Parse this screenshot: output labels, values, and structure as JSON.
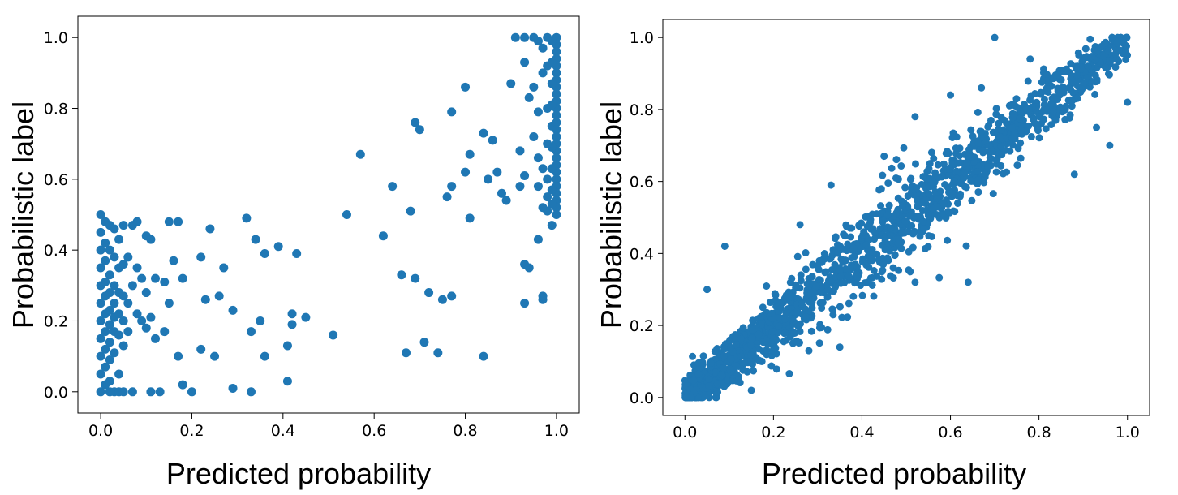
{
  "chart_data": [
    {
      "type": "scatter",
      "id": "left",
      "xlabel": "Predicted probability",
      "ylabel": "Probabilistic label",
      "xlim": [
        -0.05,
        1.05
      ],
      "ylim": [
        -0.06,
        1.06
      ],
      "xticks": [
        0.0,
        0.2,
        0.4,
        0.6,
        0.8,
        1.0
      ],
      "xtick_labels": [
        "0.0",
        "0.2",
        "0.4",
        "0.6",
        "0.8",
        "1.0"
      ],
      "yticks": [
        0.0,
        0.2,
        0.4,
        0.6,
        0.8,
        1.0
      ],
      "ytick_labels": [
        "0.0",
        "0.2",
        "0.4",
        "0.6",
        "0.8",
        "1.0"
      ],
      "marker_color": "#1f77b4",
      "points": [
        [
          0.0,
          0.5
        ],
        [
          0.0,
          0.45
        ],
        [
          0.0,
          0.4
        ],
        [
          0.0,
          0.35
        ],
        [
          0.0,
          0.3
        ],
        [
          0.0,
          0.25
        ],
        [
          0.0,
          0.2
        ],
        [
          0.0,
          0.15
        ],
        [
          0.0,
          0.1
        ],
        [
          0.0,
          0.05
        ],
        [
          0.0,
          0.0
        ],
        [
          0.01,
          0.48
        ],
        [
          0.01,
          0.42
        ],
        [
          0.01,
          0.37
        ],
        [
          0.01,
          0.31
        ],
        [
          0.01,
          0.27
        ],
        [
          0.01,
          0.22
        ],
        [
          0.01,
          0.17
        ],
        [
          0.01,
          0.12
        ],
        [
          0.01,
          0.07
        ],
        [
          0.01,
          0.02
        ],
        [
          0.02,
          0.47
        ],
        [
          0.02,
          0.4
        ],
        [
          0.02,
          0.33
        ],
        [
          0.02,
          0.28
        ],
        [
          0.02,
          0.23
        ],
        [
          0.02,
          0.19
        ],
        [
          0.02,
          0.14
        ],
        [
          0.02,
          0.09
        ],
        [
          0.02,
          0.03
        ],
        [
          0.02,
          0.0
        ],
        [
          0.03,
          0.46
        ],
        [
          0.03,
          0.38
        ],
        [
          0.03,
          0.3
        ],
        [
          0.03,
          0.25
        ],
        [
          0.03,
          0.21
        ],
        [
          0.03,
          0.17
        ],
        [
          0.03,
          0.11
        ],
        [
          0.03,
          0.0
        ],
        [
          0.04,
          0.43
        ],
        [
          0.04,
          0.35
        ],
        [
          0.04,
          0.28
        ],
        [
          0.04,
          0.22
        ],
        [
          0.04,
          0.16
        ],
        [
          0.04,
          0.05
        ],
        [
          0.04,
          0.0
        ],
        [
          0.05,
          0.47
        ],
        [
          0.05,
          0.36
        ],
        [
          0.05,
          0.27
        ],
        [
          0.05,
          0.2
        ],
        [
          0.05,
          0.13
        ],
        [
          0.05,
          0.0
        ],
        [
          0.06,
          0.38
        ],
        [
          0.06,
          0.25
        ],
        [
          0.06,
          0.17
        ],
        [
          0.07,
          0.47
        ],
        [
          0.07,
          0.3
        ],
        [
          0.07,
          0.0
        ],
        [
          0.08,
          0.48
        ],
        [
          0.08,
          0.35
        ],
        [
          0.08,
          0.22
        ],
        [
          0.09,
          0.32
        ],
        [
          0.09,
          0.2
        ],
        [
          0.1,
          0.44
        ],
        [
          0.1,
          0.28
        ],
        [
          0.1,
          0.18
        ],
        [
          0.11,
          0.43
        ],
        [
          0.11,
          0.21
        ],
        [
          0.11,
          0.0
        ],
        [
          0.12,
          0.32
        ],
        [
          0.12,
          0.15
        ],
        [
          0.13,
          0.0
        ],
        [
          0.14,
          0.31
        ],
        [
          0.14,
          0.17
        ],
        [
          0.15,
          0.48
        ],
        [
          0.15,
          0.25
        ],
        [
          0.16,
          0.37
        ],
        [
          0.17,
          0.48
        ],
        [
          0.17,
          0.1
        ],
        [
          0.18,
          0.02
        ],
        [
          0.18,
          0.32
        ],
        [
          0.2,
          0.0
        ],
        [
          0.22,
          0.38
        ],
        [
          0.22,
          0.12
        ],
        [
          0.23,
          0.26
        ],
        [
          0.24,
          0.46
        ],
        [
          0.25,
          0.1
        ],
        [
          0.26,
          0.27
        ],
        [
          0.27,
          0.35
        ],
        [
          0.29,
          0.23
        ],
        [
          0.29,
          0.01
        ],
        [
          0.32,
          0.49
        ],
        [
          0.33,
          0.17
        ],
        [
          0.33,
          0.0
        ],
        [
          0.34,
          0.43
        ],
        [
          0.35,
          0.2
        ],
        [
          0.36,
          0.1
        ],
        [
          0.36,
          0.39
        ],
        [
          0.39,
          0.41
        ],
        [
          0.41,
          0.13
        ],
        [
          0.41,
          0.03
        ],
        [
          0.42,
          0.22
        ],
        [
          0.42,
          0.19
        ],
        [
          0.43,
          0.39
        ],
        [
          0.45,
          0.21
        ],
        [
          0.51,
          0.16
        ],
        [
          0.54,
          0.5
        ],
        [
          0.57,
          0.67
        ],
        [
          0.62,
          0.44
        ],
        [
          0.64,
          0.58
        ],
        [
          0.66,
          0.33
        ],
        [
          0.67,
          0.11
        ],
        [
          0.68,
          0.51
        ],
        [
          0.69,
          0.76
        ],
        [
          0.69,
          0.32
        ],
        [
          0.7,
          0.74
        ],
        [
          0.71,
          0.14
        ],
        [
          0.72,
          0.28
        ],
        [
          0.74,
          0.11
        ],
        [
          0.75,
          0.26
        ],
        [
          0.76,
          0.55
        ],
        [
          0.77,
          0.79
        ],
        [
          0.77,
          0.58
        ],
        [
          0.77,
          0.27
        ],
        [
          0.8,
          0.86
        ],
        [
          0.8,
          0.62
        ],
        [
          0.81,
          0.49
        ],
        [
          0.81,
          0.67
        ],
        [
          0.84,
          0.73
        ],
        [
          0.84,
          0.1
        ],
        [
          0.85,
          0.6
        ],
        [
          0.86,
          0.71
        ],
        [
          0.87,
          0.62
        ],
        [
          0.88,
          0.56
        ],
        [
          0.89,
          0.54
        ],
        [
          0.9,
          0.87
        ],
        [
          0.91,
          1.0
        ],
        [
          0.92,
          0.68
        ],
        [
          0.92,
          0.58
        ],
        [
          0.93,
          1.0
        ],
        [
          0.93,
          0.93
        ],
        [
          0.93,
          0.61
        ],
        [
          0.93,
          0.36
        ],
        [
          0.93,
          0.25
        ],
        [
          0.94,
          0.83
        ],
        [
          0.94,
          0.35
        ],
        [
          0.95,
          1.0
        ],
        [
          0.95,
          0.86
        ],
        [
          0.95,
          0.72
        ],
        [
          0.96,
          0.66
        ],
        [
          0.96,
          0.58
        ],
        [
          0.96,
          0.43
        ],
        [
          0.97,
          0.97
        ],
        [
          0.97,
          0.9
        ],
        [
          0.97,
          0.26
        ],
        [
          0.97,
          0.27
        ],
        [
          0.98,
          0.8
        ],
        [
          0.98,
          0.51
        ],
        [
          0.99,
          0.47
        ],
        [
          0.99,
          0.75
        ],
        [
          1.0,
          1.0
        ],
        [
          1.0,
          0.98
        ],
        [
          1.0,
          0.96
        ],
        [
          1.0,
          0.94
        ],
        [
          1.0,
          0.92
        ],
        [
          1.0,
          0.9
        ],
        [
          1.0,
          0.88
        ],
        [
          1.0,
          0.86
        ],
        [
          1.0,
          0.84
        ],
        [
          1.0,
          0.82
        ],
        [
          1.0,
          0.8
        ],
        [
          1.0,
          0.78
        ],
        [
          1.0,
          0.76
        ],
        [
          1.0,
          0.74
        ],
        [
          1.0,
          0.72
        ],
        [
          1.0,
          0.7
        ],
        [
          1.0,
          0.68
        ],
        [
          1.0,
          0.66
        ],
        [
          1.0,
          0.64
        ],
        [
          1.0,
          0.62
        ],
        [
          1.0,
          0.6
        ],
        [
          1.0,
          0.58
        ],
        [
          1.0,
          0.56
        ],
        [
          1.0,
          0.54
        ],
        [
          1.0,
          0.52
        ],
        [
          1.0,
          0.5
        ],
        [
          0.99,
          0.99
        ],
        [
          0.99,
          0.93
        ],
        [
          0.99,
          0.87
        ],
        [
          0.99,
          0.81
        ],
        [
          0.99,
          0.69
        ],
        [
          0.99,
          0.63
        ],
        [
          0.99,
          0.57
        ],
        [
          0.99,
          0.53
        ],
        [
          0.98,
          1.0
        ],
        [
          0.98,
          0.92
        ],
        [
          0.98,
          0.7
        ],
        [
          0.98,
          0.6
        ],
        [
          0.98,
          0.55
        ],
        [
          0.97,
          0.63
        ],
        [
          0.97,
          0.52
        ],
        [
          0.96,
          0.99
        ],
        [
          0.96,
          0.79
        ]
      ]
    },
    {
      "type": "scatter",
      "id": "right",
      "xlabel": "Predicted probability",
      "ylabel": "Probabilistic label",
      "xlim": [
        -0.05,
        1.05
      ],
      "ylim": [
        -0.05,
        1.05
      ],
      "xticks": [
        0.0,
        0.2,
        0.4,
        0.6,
        0.8,
        1.0
      ],
      "xtick_labels": [
        "0.0",
        "0.2",
        "0.4",
        "0.6",
        "0.8",
        "1.0"
      ],
      "yticks": [
        0.0,
        0.2,
        0.4,
        0.6,
        0.8,
        1.0
      ],
      "ytick_labels": [
        "0.0",
        "0.2",
        "0.4",
        "0.6",
        "0.8",
        "1.0"
      ],
      "marker_color": "#1f77b4",
      "trend": {
        "description": "dense cloud along the diagonal y ≈ x",
        "n_points": 1600,
        "spread": 0.045
      },
      "outliers": [
        [
          0.7,
          1.0
        ],
        [
          0.52,
          0.32
        ],
        [
          0.64,
          0.32
        ],
        [
          0.35,
          0.14
        ],
        [
          0.09,
          0.42
        ],
        [
          0.26,
          0.48
        ],
        [
          0.33,
          0.59
        ],
        [
          0.45,
          0.67
        ],
        [
          0.52,
          0.78
        ],
        [
          0.6,
          0.84
        ],
        [
          0.67,
          0.86
        ],
        [
          0.78,
          0.94
        ],
        [
          0.96,
          0.7
        ],
        [
          0.88,
          0.62
        ],
        [
          0.93,
          0.75
        ],
        [
          1.0,
          0.82
        ],
        [
          0.05,
          0.3
        ],
        [
          0.28,
          0.13
        ],
        [
          0.15,
          0.02
        ],
        [
          0.74,
          0.72
        ]
      ]
    }
  ]
}
